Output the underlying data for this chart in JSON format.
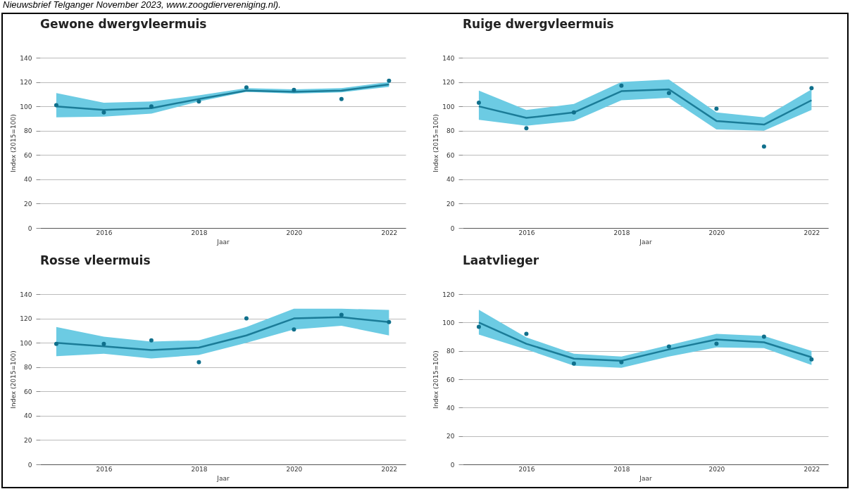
{
  "chart_data": [
    {
      "type": "line",
      "title": "Gewone dwergvleermuis",
      "xlabel": "Jaar",
      "ylabel": "Index (2015=100)",
      "annotations": [
        "Nieuwsbrief Telganger November 2023, www.zoogdiervereniging.nl)."
      ],
      "x": [
        2015,
        2016,
        2017,
        2018,
        2019,
        2020,
        2021,
        2022
      ],
      "xlim": [
        2014.66,
        2022.35
      ],
      "xticks": [
        2016,
        2018,
        2020,
        2022
      ],
      "ylim": [
        0,
        140
      ],
      "yticks": [
        0,
        20,
        40,
        60,
        80,
        100,
        120,
        140
      ],
      "grid": "y",
      "series": [
        {
          "type": "line",
          "color": "#1b7c98",
          "values": [
            100,
            97,
            98.5,
            106,
            113,
            112,
            113,
            118
          ],
          "lower": [
            91,
            91.5,
            94,
            104,
            112,
            110.5,
            111.5,
            116
          ],
          "upper": [
            111,
            103,
            104,
            109,
            115,
            114,
            115,
            120
          ]
        },
        {
          "type": "scatter",
          "marker": "circle",
          "color": "#10708c",
          "values": [
            101,
            95,
            100,
            104,
            115.5,
            113.5,
            106,
            121
          ]
        }
      ]
    },
    {
      "type": "line",
      "title": "Ruige dwergvleermuis",
      "xlabel": "Jaar",
      "ylabel": "Index (2015=100)",
      "x": [
        2015,
        2016,
        2017,
        2018,
        2019,
        2020,
        2021,
        2022
      ],
      "xlim": [
        2014.66,
        2022.35
      ],
      "xticks": [
        2016,
        2018,
        2020,
        2022
      ],
      "ylim": [
        0,
        140
      ],
      "yticks": [
        0,
        20,
        40,
        60,
        80,
        100,
        120,
        140
      ],
      "grid": "y",
      "series": [
        {
          "type": "line",
          "color": "#1b7c98",
          "values": [
            100,
            90.5,
            95,
            112.5,
            114,
            88,
            85,
            105
          ],
          "lower": [
            89,
            84,
            88,
            105,
            107,
            81,
            80,
            97
          ],
          "upper": [
            113,
            97,
            102,
            120,
            122,
            95,
            91,
            114
          ]
        },
        {
          "type": "scatter",
          "marker": "circle",
          "color": "#10708c",
          "values": [
            103,
            82,
            95,
            117,
            111,
            98,
            67,
            115
          ]
        }
      ]
    },
    {
      "type": "line",
      "title": "Rosse vleermuis",
      "xlabel": "Jaar",
      "ylabel": "Index (2015=100)",
      "x": [
        2015,
        2016,
        2017,
        2018,
        2019,
        2020,
        2021,
        2022
      ],
      "xlim": [
        2014.66,
        2022.35
      ],
      "xticks": [
        2016,
        2018,
        2020,
        2022
      ],
      "ylim": [
        0,
        140
      ],
      "yticks": [
        0,
        20,
        40,
        60,
        80,
        100,
        120,
        140
      ],
      "grid": "y",
      "series": [
        {
          "type": "line",
          "color": "#1b7c98",
          "values": [
            100,
            97,
            94,
            96,
            106,
            120,
            121,
            117
          ],
          "lower": [
            89,
            91,
            87,
            90,
            100,
            111,
            114,
            106
          ],
          "upper": [
            113,
            105,
            101,
            102,
            113,
            128,
            128,
            127
          ]
        },
        {
          "type": "scatter",
          "marker": "circle",
          "color": "#10708c",
          "values": [
            99,
            99,
            102,
            84,
            120,
            111,
            123,
            117
          ]
        }
      ]
    },
    {
      "type": "line",
      "title": "Laatvlieger",
      "xlabel": "Jaar",
      "ylabel": "Index (2015=100)",
      "x": [
        2015,
        2016,
        2017,
        2018,
        2019,
        2020,
        2021,
        2022
      ],
      "xlim": [
        2014.66,
        2022.35
      ],
      "xticks": [
        2016,
        2018,
        2020,
        2022
      ],
      "ylim": [
        0,
        120
      ],
      "yticks": [
        0,
        20,
        40,
        60,
        80,
        100,
        120
      ],
      "grid": "y",
      "series": [
        {
          "type": "line",
          "color": "#1b7c98",
          "values": [
            100,
            85,
            74.5,
            73,
            81,
            88,
            86,
            75.5
          ],
          "lower": [
            91.5,
            81,
            69.5,
            68,
            76,
            82.5,
            82,
            70
          ],
          "upper": [
            109,
            89.5,
            78,
            76,
            84,
            92,
            90.5,
            80
          ]
        },
        {
          "type": "scatter",
          "marker": "circle",
          "color": "#10708c",
          "values": [
            97,
            92,
            71,
            72,
            83,
            85,
            90,
            74
          ]
        }
      ]
    }
  ]
}
